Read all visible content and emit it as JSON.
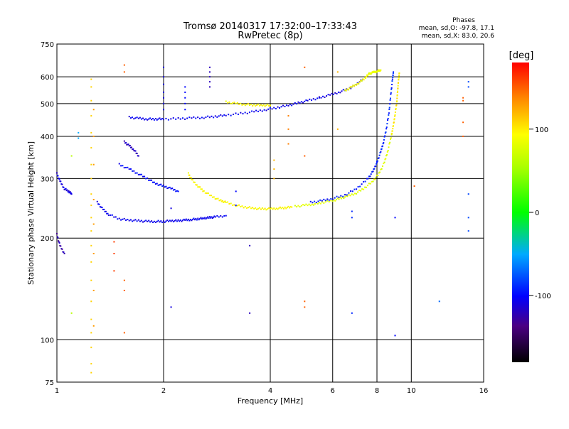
{
  "chart_data": {
    "type": "scatter",
    "title": "Tromsø 20140317 17:32:00–17:33:43",
    "subtitle": "RwPretec (8p)",
    "xlabel": "Frequency [MHz]",
    "ylabel": "Stationary phase Virtual Height [km]",
    "x_scale": "log",
    "y_scale": "log",
    "xlim": [
      1,
      16
    ],
    "ylim": [
      75,
      750
    ],
    "x_ticks": [
      1,
      2,
      4,
      6,
      8,
      10,
      16
    ],
    "x_tick_labels": [
      "1",
      "2",
      "4",
      "6",
      "8",
      "10",
      "16"
    ],
    "y_ticks": [
      75,
      100,
      200,
      300,
      400,
      500,
      600,
      750
    ],
    "y_tick_labels": [
      "75",
      "100",
      "200",
      "300",
      "400",
      "500",
      "600",
      "750"
    ],
    "grid": true,
    "phases_box": {
      "title": "Phases",
      "line_o": "mean, sd,O:  -97.8, 17.1",
      "line_x": "mean, sd,X:  83.0, 20.6"
    },
    "colorbar": {
      "label": "[deg]",
      "range": [
        -180,
        180
      ],
      "ticks": [
        100,
        0,
        -100
      ],
      "tick_labels": [
        "100",
        "0",
        "-100"
      ]
    },
    "traces": [
      {
        "x": [
          1.3,
          1.35,
          1.4,
          1.5,
          1.6,
          1.7,
          1.8,
          1.9,
          2.0,
          2.1,
          2.2,
          2.3,
          2.4,
          2.5,
          2.6,
          2.7,
          2.8,
          3.0
        ],
        "y": [
          255,
          243,
          235,
          228,
          226,
          225,
          224,
          224,
          224,
          225,
          225,
          226,
          227,
          228,
          229,
          230,
          231,
          233
        ],
        "phase": -105
      },
      {
        "x": [
          2.35,
          2.4,
          2.5,
          2.6,
          2.75,
          2.9,
          3.0,
          3.2,
          3.4,
          3.6,
          3.8,
          4.0,
          4.2,
          4.4,
          4.6
        ],
        "y": [
          310,
          298,
          285,
          275,
          265,
          258,
          255,
          250,
          247,
          245,
          244,
          244,
          245,
          246,
          247
        ],
        "phase": 95
      },
      {
        "x": [
          4.7,
          5.0,
          5.3,
          5.6,
          6.0,
          6.3,
          6.6,
          7.0,
          7.4,
          7.8,
          8.1,
          8.4,
          8.6,
          8.8
        ],
        "y": [
          248,
          250,
          252,
          255,
          258,
          262,
          266,
          272,
          282,
          295,
          310,
          335,
          365,
          405
        ],
        "phase": 80
      },
      {
        "x": [
          8.8,
          8.9,
          9.0,
          9.1,
          9.15,
          9.2,
          9.25
        ],
        "y": [
          405,
          430,
          465,
          505,
          545,
          585,
          615
        ],
        "phase": 100
      },
      {
        "x": [
          5.2,
          5.6,
          6.0,
          6.5,
          7.0,
          7.5,
          7.8,
          8.0
        ],
        "y": [
          255,
          258,
          262,
          268,
          280,
          298,
          315,
          335
        ],
        "phase": -95
      },
      {
        "x": [
          8.0,
          8.2,
          8.35,
          8.5,
          8.65,
          8.75,
          8.85,
          8.9
        ],
        "y": [
          335,
          360,
          385,
          420,
          470,
          530,
          590,
          620
        ],
        "phase": -90
      },
      {
        "x": [
          1.6,
          1.7,
          1.8,
          1.9,
          2.0,
          2.2,
          2.4,
          2.6,
          2.8,
          3.0,
          3.3,
          3.6,
          3.9,
          4.2,
          4.5,
          4.8,
          5.1,
          5.5
        ],
        "y": [
          455,
          452,
          450,
          450,
          450,
          451,
          453,
          455,
          458,
          462,
          467,
          473,
          480,
          487,
          494,
          502,
          510,
          520
        ],
        "phase": -105
      },
      {
        "x": [
          5.5,
          5.9,
          6.3,
          6.7,
          7.0,
          7.3
        ],
        "y": [
          520,
          530,
          542,
          555,
          570,
          590
        ],
        "phase": -110
      },
      {
        "x": [
          3.0,
          3.2,
          3.4,
          3.6,
          3.8,
          4.0
        ],
        "y": [
          505,
          500,
          497,
          495,
          494,
          494
        ],
        "phase": 95
      },
      {
        "x": [
          6.5,
          6.8,
          7.1,
          7.4,
          7.6
        ],
        "y": [
          545,
          560,
          575,
          595,
          612
        ],
        "phase": 90
      },
      {
        "x": [
          7.6,
          7.8,
          8.0,
          8.2
        ],
        "y": [
          612,
          618,
          623,
          628
        ],
        "phase": 85
      },
      {
        "x": [
          1.5,
          1.6,
          1.7,
          1.8,
          1.9,
          2.0,
          2.1,
          2.2
        ],
        "y": [
          330,
          320,
          310,
          300,
          290,
          285,
          280,
          275
        ],
        "phase": -100
      },
      {
        "x": [
          1.55,
          1.6,
          1.65,
          1.7
        ],
        "y": [
          385,
          375,
          365,
          350
        ],
        "phase": -120
      },
      {
        "x": [
          1.0,
          1.02,
          1.05,
          1.08,
          1.1
        ],
        "y": [
          310,
          295,
          280,
          275,
          270
        ],
        "phase": -110
      },
      {
        "x": [
          1.0,
          1.02,
          1.05
        ],
        "y": [
          205,
          190,
          180
        ],
        "phase": -125
      }
    ],
    "scatter_points": [
      {
        "x": 1.25,
        "y": [
          80,
          85,
          95,
          105,
          115,
          130,
          150,
          170,
          190,
          210,
          230,
          250,
          270,
          300,
          330,
          370,
          410,
          460,
          510,
          560,
          590
        ],
        "phase": 110
      },
      {
        "x": 1.27,
        "y": [
          110,
          140,
          180,
          220,
          260,
          330,
          400,
          480
        ],
        "phase": 130
      },
      {
        "x": 1.55,
        "y": [
          650,
          620,
          150,
          140,
          105
        ],
        "phase": 150
      },
      {
        "x": 1.45,
        "y": [
          180,
          195,
          160
        ],
        "phase": 160
      },
      {
        "x": 2.0,
        "y": [
          640,
          600,
          570,
          540,
          520,
          500,
          480
        ],
        "phase": -110
      },
      {
        "x": 2.7,
        "y": [
          640,
          620,
          600,
          580,
          560
        ],
        "phase": -120
      },
      {
        "x": 2.3,
        "y": [
          560,
          540,
          520,
          500,
          480
        ],
        "phase": -100
      },
      {
        "x": 4.1,
        "y": [
          300,
          320,
          340
        ],
        "phase": 120
      },
      {
        "x": 4.5,
        "y": [
          380,
          420,
          460
        ],
        "phase": 140
      },
      {
        "x": 5.0,
        "y": [
          640,
          350,
          130,
          125
        ],
        "phase": 150
      },
      {
        "x": 6.8,
        "y": [
          120,
          230,
          240
        ],
        "phase": -90
      },
      {
        "x": 9.0,
        "y": [
          103,
          230
        ],
        "phase": -100
      },
      {
        "x": 10.2,
        "y": [
          285
        ],
        "phase": 150
      },
      {
        "x": 12.0,
        "y": [
          130
        ],
        "phase": -70
      },
      {
        "x": 14.0,
        "y": [
          510,
          520,
          440,
          400
        ],
        "phase": 150
      },
      {
        "x": 14.5,
        "y": [
          580,
          560,
          270,
          230,
          210
        ],
        "phase": -80
      },
      {
        "x": 3.5,
        "y": [
          190,
          120
        ],
        "phase": -120
      },
      {
        "x": 2.1,
        "y": [
          125,
          245
        ],
        "phase": -110
      },
      {
        "x": 3.2,
        "y": [
          275,
          250
        ],
        "phase": -100
      },
      {
        "x": 6.2,
        "y": [
          420,
          620
        ],
        "phase": 120
      },
      {
        "x": 1.1,
        "y": [
          120,
          350
        ],
        "phase": 60
      },
      {
        "x": 1.15,
        "y": [
          410,
          395
        ],
        "phase": -50
      }
    ]
  }
}
